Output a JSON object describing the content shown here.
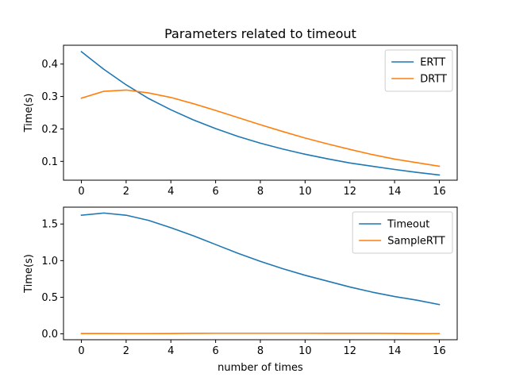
{
  "chart_data": [
    {
      "type": "line",
      "title": "Parameters related to timeout",
      "xlabel": "",
      "ylabel": "Time(s)",
      "xlim": [
        -0.8,
        16.8
      ],
      "ylim": [
        0.042,
        0.458
      ],
      "xticks": [
        0,
        2,
        4,
        6,
        8,
        10,
        12,
        14,
        16
      ],
      "yticks": [
        0.1,
        0.2,
        0.3,
        0.4
      ],
      "ytick_labels": [
        "0.1",
        "0.2",
        "0.3",
        "0.4"
      ],
      "legend": "upper right",
      "grid": false,
      "x": [
        0,
        1,
        2,
        3,
        4,
        5,
        6,
        7,
        8,
        9,
        10,
        11,
        12,
        13,
        14,
        15,
        16
      ],
      "series": [
        {
          "name": "ERTT",
          "color": "#1f77b4",
          "values": [
            0.438,
            0.384,
            0.336,
            0.294,
            0.259,
            0.228,
            0.201,
            0.177,
            0.156,
            0.138,
            0.122,
            0.108,
            0.095,
            0.085,
            0.075,
            0.066,
            0.058
          ]
        },
        {
          "name": "DRTT",
          "color": "#ff7f0e",
          "values": [
            0.295,
            0.316,
            0.32,
            0.311,
            0.297,
            0.278,
            0.257,
            0.235,
            0.213,
            0.192,
            0.172,
            0.154,
            0.137,
            0.121,
            0.107,
            0.096,
            0.085
          ]
        }
      ]
    },
    {
      "type": "line",
      "title": "",
      "xlabel": "number of times",
      "ylabel": "Time(s)",
      "xlim": [
        -0.8,
        16.8
      ],
      "ylim": [
        -0.08,
        1.73
      ],
      "xticks": [
        0,
        2,
        4,
        6,
        8,
        10,
        12,
        14,
        16
      ],
      "yticks": [
        0.0,
        0.5,
        1.0,
        1.5
      ],
      "ytick_labels": [
        "0.0",
        "0.5",
        "1.0",
        "1.5"
      ],
      "legend": "upper right",
      "grid": false,
      "x": [
        0,
        1,
        2,
        3,
        4,
        5,
        6,
        7,
        8,
        9,
        10,
        11,
        12,
        13,
        14,
        15,
        16
      ],
      "series": [
        {
          "name": "Timeout",
          "color": "#1f77b4",
          "values": [
            1.62,
            1.65,
            1.62,
            1.55,
            1.45,
            1.34,
            1.22,
            1.1,
            0.99,
            0.89,
            0.8,
            0.72,
            0.64,
            0.57,
            0.51,
            0.46,
            0.4
          ]
        },
        {
          "name": "SampleRTT",
          "color": "#ff7f0e",
          "values": [
            0.005,
            0.005,
            0.004,
            0.004,
            0.005,
            0.007,
            0.008,
            0.008,
            0.008,
            0.008,
            0.008,
            0.007,
            0.007,
            0.007,
            0.006,
            0.003,
            0.004
          ]
        }
      ]
    }
  ]
}
